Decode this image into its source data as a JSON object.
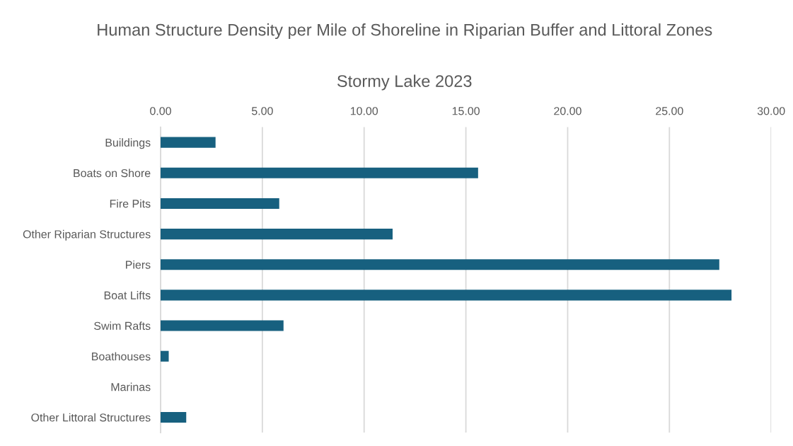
{
  "chart_data": {
    "type": "bar",
    "orientation": "horizontal",
    "title": "Human Structure Density per Mile of Shoreline in Riparian Buffer and Littoral Zones",
    "subtitle": "Stormy Lake 2023",
    "categories": [
      "Buildings",
      "Boats on Shore",
      "Fire Pits",
      "Other Riparian Structures",
      "Piers",
      "Boat Lifts",
      "Swim Rafts",
      "Boathouses",
      "Marinas",
      "Other Littoral Structures"
    ],
    "values": [
      2.7,
      15.6,
      5.83,
      11.4,
      27.45,
      28.05,
      6.04,
      0.4,
      0,
      1.26
    ],
    "color": "#17607f",
    "xlim": [
      0,
      30
    ],
    "xticks": [
      {
        "value": 0,
        "label": "0.00"
      },
      {
        "value": 5,
        "label": "5.00"
      },
      {
        "value": 10,
        "label": "10.00"
      },
      {
        "value": 15,
        "label": "15.00"
      },
      {
        "value": 20,
        "label": "20.00"
      },
      {
        "value": 25,
        "label": "25.00"
      },
      {
        "value": 30,
        "label": "30.00"
      }
    ],
    "grid": "x"
  }
}
